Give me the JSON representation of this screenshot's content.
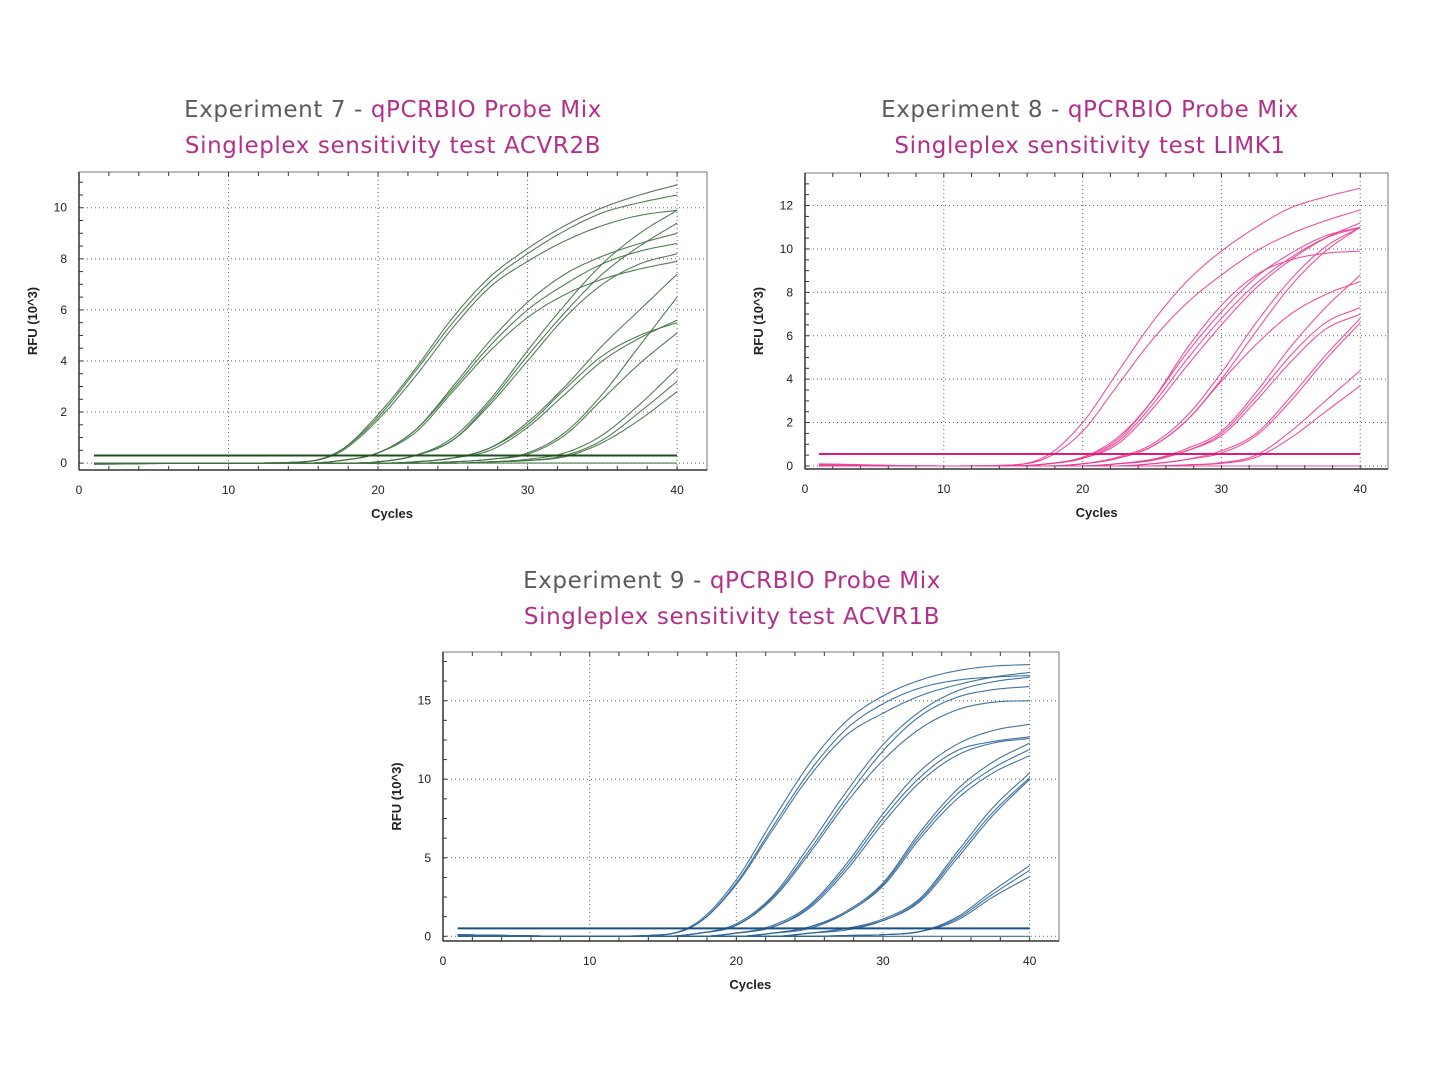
{
  "chart_data": [
    {
      "type": "line",
      "title_prefix": "Experiment 7 - ",
      "title_product": "qPCRBIO Probe Mix",
      "subtitle": "Singleplex sensitivity test ACVR2B",
      "xlabel": "Cycles",
      "ylabel": "RFU (10^3)",
      "xlim": [
        0,
        42
      ],
      "ylim": [
        -0.27,
        11.4
      ],
      "xticks": [
        0,
        10,
        20,
        30,
        40
      ],
      "yticks": [
        0,
        2,
        4,
        6,
        8,
        10
      ],
      "grid": true,
      "color": "#3f7040",
      "threshold_color": "#1f4f1f",
      "threshold": 0.3,
      "x": [
        1,
        10,
        15,
        17.5,
        20,
        22.5,
        25,
        27.5,
        30,
        32.5,
        35,
        37.5,
        40
      ],
      "series": [
        {
          "values": [
            0,
            0,
            0.05,
            0.5,
            1.9,
            3.7,
            5.7,
            7.3,
            8.4,
            9.3,
            10.0,
            10.5,
            10.9
          ]
        },
        {
          "values": [
            0,
            0,
            0.05,
            0.5,
            1.8,
            3.6,
            5.5,
            7.1,
            8.2,
            9.1,
            9.8,
            10.2,
            10.5
          ]
        },
        {
          "values": [
            0,
            0,
            0.05,
            0.45,
            1.7,
            3.4,
            5.3,
            6.9,
            7.9,
            8.7,
            9.3,
            9.7,
            9.9
          ]
        },
        {
          "values": [
            0,
            0,
            0,
            0.1,
            0.4,
            1.3,
            3.0,
            4.8,
            6.3,
            7.4,
            8.1,
            8.6,
            9.0
          ]
        },
        {
          "values": [
            0,
            0,
            0,
            0.1,
            0.4,
            1.3,
            2.9,
            4.6,
            6.0,
            7.0,
            7.8,
            8.3,
            8.6
          ]
        },
        {
          "values": [
            0,
            0,
            0,
            0.1,
            0.4,
            1.2,
            2.8,
            4.4,
            5.7,
            6.6,
            7.2,
            7.6,
            7.9
          ]
        },
        {
          "values": [
            0,
            0,
            0,
            0,
            0.05,
            0.3,
            1.0,
            2.5,
            4.4,
            6.2,
            7.8,
            9.0,
            9.9
          ]
        },
        {
          "values": [
            0,
            0,
            0,
            0,
            0.05,
            0.3,
            0.9,
            2.4,
            4.2,
            5.9,
            7.4,
            8.5,
            9.4
          ]
        },
        {
          "values": [
            0,
            0,
            0,
            0,
            0.05,
            0.3,
            0.9,
            2.3,
            4.0,
            5.7,
            7.0,
            7.8,
            8.2
          ]
        },
        {
          "values": [
            0,
            0,
            0,
            0,
            0,
            0.05,
            0.2,
            0.6,
            1.6,
            3.0,
            4.6,
            6.0,
            7.4
          ]
        },
        {
          "values": [
            0,
            0,
            0,
            0,
            0,
            0.05,
            0.2,
            0.6,
            1.5,
            2.9,
            4.2,
            5.0,
            5.5
          ]
        },
        {
          "values": [
            0,
            0,
            0,
            0,
            0,
            0.05,
            0.2,
            0.5,
            1.4,
            2.7,
            4.0,
            4.9,
            5.6
          ]
        },
        {
          "values": [
            0,
            0,
            0,
            0,
            0,
            0,
            0.05,
            0.15,
            0.4,
            1.2,
            2.7,
            4.6,
            6.5
          ]
        },
        {
          "values": [
            0,
            0,
            0,
            0,
            0,
            0,
            0.05,
            0.15,
            0.35,
            1.1,
            2.5,
            3.9,
            5.1
          ]
        },
        {
          "values": [
            0,
            0,
            0,
            0,
            0,
            0,
            0,
            0.05,
            0.15,
            0.4,
            1.1,
            2.3,
            3.7
          ]
        },
        {
          "values": [
            0,
            0,
            0,
            0,
            0,
            0,
            0,
            0.05,
            0.1,
            0.3,
            0.9,
            2.0,
            3.2
          ]
        },
        {
          "values": [
            0,
            0,
            0,
            0,
            0,
            0,
            0,
            0.05,
            0.1,
            0.25,
            0.8,
            1.7,
            2.8
          ]
        },
        {
          "values": [
            -0.05,
            0,
            0,
            0,
            0,
            0,
            0,
            0,
            0,
            0,
            0,
            0,
            0
          ]
        }
      ]
    },
    {
      "type": "line",
      "title_prefix": "Experiment 8 - ",
      "title_product": "qPCRBIO Probe Mix",
      "subtitle": "Singleplex sensitivity test LIMK1",
      "xlabel": "Cycles",
      "ylabel": "RFU (10^3)",
      "xlim": [
        0,
        42
      ],
      "ylim": [
        -0.14,
        13.5
      ],
      "xticks": [
        0,
        10,
        20,
        30,
        40
      ],
      "yticks": [
        0,
        2,
        4,
        6,
        8,
        10,
        12
      ],
      "grid": true,
      "color": "#ec3d93",
      "threshold_color": "#e0197e",
      "threshold": 0.55,
      "x": [
        1,
        10,
        15,
        17.5,
        20,
        22.5,
        25,
        27.5,
        30,
        32.5,
        35,
        37.5,
        40
      ],
      "series": [
        {
          "values": [
            0.05,
            0,
            0.05,
            0.5,
            2.0,
            4.3,
            6.6,
            8.5,
            9.9,
            11.0,
            11.9,
            12.4,
            12.8
          ]
        },
        {
          "values": [
            0.05,
            0,
            0.05,
            0.4,
            1.6,
            3.7,
            5.8,
            7.5,
            8.8,
            9.9,
            10.7,
            11.3,
            11.8
          ]
        },
        {
          "values": [
            0,
            0,
            0,
            0.1,
            0.4,
            1.2,
            3.0,
            5.2,
            7.1,
            8.7,
            9.8,
            10.6,
            11.0
          ]
        },
        {
          "values": [
            0,
            0,
            0,
            0.1,
            0.35,
            1.1,
            2.8,
            4.9,
            6.8,
            8.4,
            9.6,
            10.5,
            11.0
          ]
        },
        {
          "values": [
            0,
            0,
            0,
            0.1,
            0.35,
            1.0,
            2.6,
            4.6,
            6.5,
            8.2,
            9.5,
            10.5,
            11.2
          ]
        },
        {
          "values": [
            0,
            0,
            0,
            0.1,
            0.4,
            1.3,
            3.0,
            5.4,
            7.4,
            8.8,
            9.5,
            9.8,
            9.9
          ]
        },
        {
          "values": [
            0,
            0,
            0,
            0,
            0.1,
            0.4,
            1.0,
            2.3,
            4.3,
            6.6,
            8.6,
            10.1,
            11.0
          ]
        },
        {
          "values": [
            0,
            0,
            0,
            0,
            0.1,
            0.35,
            0.9,
            2.1,
            4.0,
            6.2,
            8.3,
            9.9,
            11.0
          ]
        },
        {
          "values": [
            0,
            0,
            0,
            0,
            0.1,
            0.35,
            0.9,
            2.1,
            3.9,
            5.6,
            7.0,
            7.9,
            8.5
          ]
        },
        {
          "values": [
            0,
            0,
            0,
            0,
            0,
            0.1,
            0.3,
            0.8,
            1.6,
            3.4,
            5.5,
            7.3,
            8.8
          ]
        },
        {
          "values": [
            0,
            0,
            0,
            0,
            0,
            0.1,
            0.3,
            0.7,
            1.5,
            3.2,
            5.1,
            6.6,
            7.3
          ]
        },
        {
          "values": [
            0,
            0,
            0,
            0,
            0,
            0.1,
            0.25,
            0.7,
            1.4,
            3.0,
            4.8,
            6.3,
            7.0
          ]
        },
        {
          "values": [
            0,
            0,
            0,
            0,
            0,
            0,
            0.1,
            0.3,
            0.7,
            1.5,
            3.2,
            5.1,
            6.8
          ]
        },
        {
          "values": [
            0,
            0,
            0,
            0,
            0,
            0,
            0.1,
            0.3,
            0.6,
            1.4,
            3.0,
            4.9,
            6.6
          ]
        },
        {
          "values": [
            0,
            0,
            0,
            0,
            0,
            0,
            0,
            0.05,
            0.15,
            0.5,
            1.6,
            3.0,
            4.4
          ]
        },
        {
          "values": [
            0,
            0,
            0,
            0,
            0,
            0,
            0,
            0.05,
            0.12,
            0.4,
            1.3,
            2.5,
            3.7
          ]
        },
        {
          "values": [
            0.1,
            0,
            0,
            0,
            0,
            0,
            0,
            0,
            0,
            0,
            0,
            0,
            0
          ]
        }
      ]
    },
    {
      "type": "line",
      "title_prefix": "Experiment 9 - ",
      "title_product": "qPCRBIO Probe Mix",
      "subtitle": "Singleplex sensitivity test ACVR1B",
      "xlabel": "Cycles",
      "ylabel": "RFU (10^3)",
      "xlim": [
        0,
        42
      ],
      "ylim": [
        -0.3,
        18.1
      ],
      "xticks": [
        0,
        10,
        20,
        30,
        40
      ],
      "yticks": [
        0,
        5,
        10,
        15
      ],
      "grid": true,
      "color": "#2f6496",
      "threshold_color": "#174f86",
      "threshold": 0.5,
      "x": [
        1,
        10,
        15,
        17.5,
        20,
        22.5,
        25,
        27.5,
        30,
        32.5,
        35,
        37.5,
        40
      ],
      "series": [
        {
          "values": [
            0.1,
            0,
            0.1,
            1.0,
            3.6,
            7.4,
            11.0,
            13.7,
            15.3,
            16.3,
            16.9,
            17.2,
            17.3
          ]
        },
        {
          "values": [
            0.1,
            0,
            0.1,
            0.9,
            3.4,
            7.0,
            10.5,
            13.2,
            14.8,
            15.8,
            16.3,
            16.5,
            16.6
          ]
        },
        {
          "values": [
            0.1,
            0,
            0.1,
            0.9,
            3.3,
            6.8,
            10.2,
            12.8,
            14.2,
            15.3,
            16.0,
            16.5,
            16.8
          ]
        },
        {
          "values": [
            0,
            0,
            0,
            0.2,
            0.8,
            2.6,
            5.8,
            9.2,
            12.2,
            14.3,
            15.6,
            16.2,
            16.5
          ]
        },
        {
          "values": [
            0,
            0,
            0,
            0.2,
            0.7,
            2.5,
            5.5,
            8.8,
            11.8,
            14.0,
            15.2,
            15.7,
            15.9
          ]
        },
        {
          "values": [
            0,
            0,
            0,
            0.2,
            0.7,
            2.4,
            5.3,
            8.5,
            11.2,
            13.2,
            14.4,
            14.9,
            15.0
          ]
        },
        {
          "values": [
            0,
            0,
            0,
            0,
            0.2,
            0.7,
            2.0,
            4.6,
            7.8,
            10.5,
            12.2,
            13.1,
            13.5
          ]
        },
        {
          "values": [
            0,
            0,
            0,
            0,
            0.2,
            0.6,
            1.9,
            4.4,
            7.5,
            10.1,
            11.8,
            12.4,
            12.7
          ]
        },
        {
          "values": [
            0,
            0,
            0,
            0,
            0.2,
            0.6,
            1.8,
            4.2,
            7.2,
            9.8,
            11.5,
            12.3,
            12.6
          ]
        },
        {
          "values": [
            0,
            0,
            0,
            0,
            0,
            0.2,
            0.6,
            1.6,
            3.4,
            6.6,
            9.3,
            11.1,
            12.3
          ]
        },
        {
          "values": [
            0,
            0,
            0,
            0,
            0,
            0.2,
            0.6,
            1.5,
            3.3,
            6.4,
            9.0,
            10.7,
            11.9
          ]
        },
        {
          "values": [
            0,
            0,
            0,
            0,
            0,
            0.2,
            0.5,
            1.5,
            3.2,
            6.2,
            8.7,
            10.4,
            11.5
          ]
        },
        {
          "values": [
            0,
            0,
            0,
            0,
            0,
            0,
            0.2,
            0.5,
            1.1,
            2.4,
            5.3,
            8.2,
            10.4
          ]
        },
        {
          "values": [
            0,
            0,
            0,
            0,
            0,
            0,
            0.2,
            0.5,
            1.0,
            2.3,
            5.1,
            7.9,
            10.1
          ]
        },
        {
          "values": [
            0,
            0,
            0,
            0,
            0,
            0,
            0.2,
            0.4,
            1.0,
            2.2,
            4.9,
            7.7,
            10.0
          ]
        },
        {
          "values": [
            0,
            0,
            0,
            0,
            0,
            0,
            0,
            0.05,
            0.1,
            0.3,
            1.2,
            2.9,
            4.5
          ]
        },
        {
          "values": [
            0,
            0,
            0,
            0,
            0,
            0,
            0,
            0.05,
            0.1,
            0.3,
            1.1,
            2.7,
            4.2
          ]
        },
        {
          "values": [
            0,
            0,
            0,
            0,
            0,
            0,
            0,
            0.05,
            0.1,
            0.3,
            1.0,
            2.5,
            3.8
          ]
        },
        {
          "values": [
            0.1,
            0,
            0,
            0,
            0,
            0,
            0,
            0,
            0,
            0,
            0,
            0,
            0
          ]
        }
      ]
    }
  ]
}
